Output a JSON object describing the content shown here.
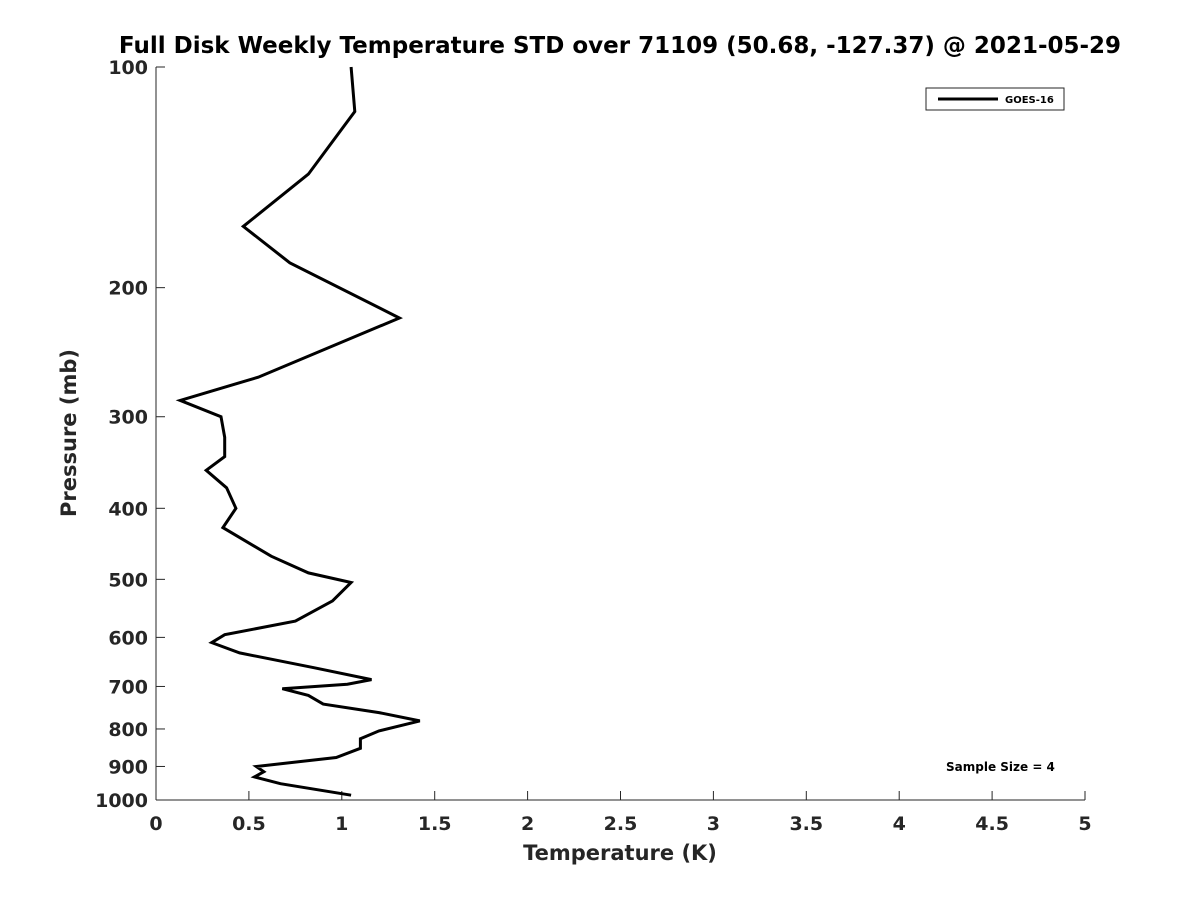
{
  "chart_data": {
    "type": "line",
    "title": "Full Disk Weekly Temperature STD over 71109 (50.68, -127.37) @ 2021-05-29",
    "xlabel": "Temperature (K)",
    "ylabel": "Pressure (mb)",
    "xlim": [
      0,
      5
    ],
    "ylim": [
      100,
      1000
    ],
    "yscale": "log",
    "y_reversed": true,
    "xticks": [
      "0",
      "0.5",
      "1",
      "1.5",
      "2",
      "2.5",
      "3",
      "3.5",
      "4",
      "4.5",
      "5"
    ],
    "yticks": [
      "100",
      "200",
      "300",
      "400",
      "500",
      "600",
      "700",
      "800",
      "900",
      "1000"
    ],
    "grid": false,
    "legend_position": "top-right",
    "annotation": "Sample Size = 4",
    "series": [
      {
        "name": "GOES-16",
        "color": "#000000",
        "x": [
          1.05,
          1.07,
          0.82,
          0.47,
          0.72,
          1.31,
          0.55,
          0.13,
          0.35,
          0.37,
          0.37,
          0.27,
          0.38,
          0.43,
          0.36,
          0.62,
          0.82,
          1.05,
          0.95,
          0.75,
          0.37,
          0.3,
          0.45,
          0.85,
          1.16,
          1.03,
          0.68,
          0.82,
          0.9,
          1.2,
          1.42,
          1.2,
          1.1,
          1.1,
          0.97,
          0.54,
          0.58,
          0.53,
          0.67,
          1.05
        ],
        "y": [
          100,
          115,
          140,
          165,
          185,
          220,
          265,
          285,
          300,
          320,
          340,
          355,
          375,
          400,
          425,
          465,
          490,
          505,
          535,
          570,
          595,
          610,
          630,
          660,
          685,
          695,
          705,
          720,
          740,
          760,
          780,
          805,
          825,
          850,
          875,
          900,
          915,
          930,
          950,
          985
        ]
      }
    ]
  }
}
